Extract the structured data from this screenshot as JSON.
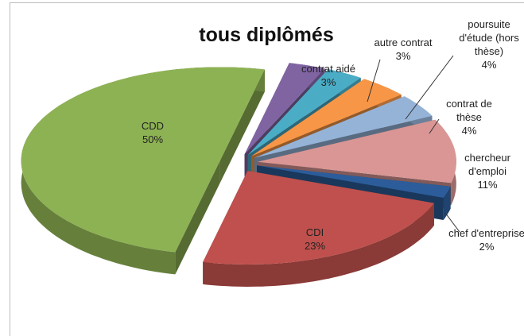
{
  "chart_data": {
    "type": "pie3d",
    "title": "tous diplômés",
    "categories": [
      "contrat aidé",
      "autre contrat",
      "poursuite d'étude (hors thèse)",
      "contrat de thèse",
      "chercheur d'emploi",
      "chef d'entreprise",
      "CDI",
      "CDD"
    ],
    "values": [
      3,
      3,
      4,
      4,
      11,
      2,
      23,
      50
    ],
    "value_labels": [
      "3%",
      "3%",
      "4%",
      "4%",
      "11%",
      "2%",
      "23%",
      "50%"
    ],
    "colors": [
      "#8064a2",
      "#4bacc6",
      "#f79646",
      "#95b3d7",
      "#d99694",
      "#2c5d9a",
      "#c0504d",
      "#8db253"
    ]
  }
}
